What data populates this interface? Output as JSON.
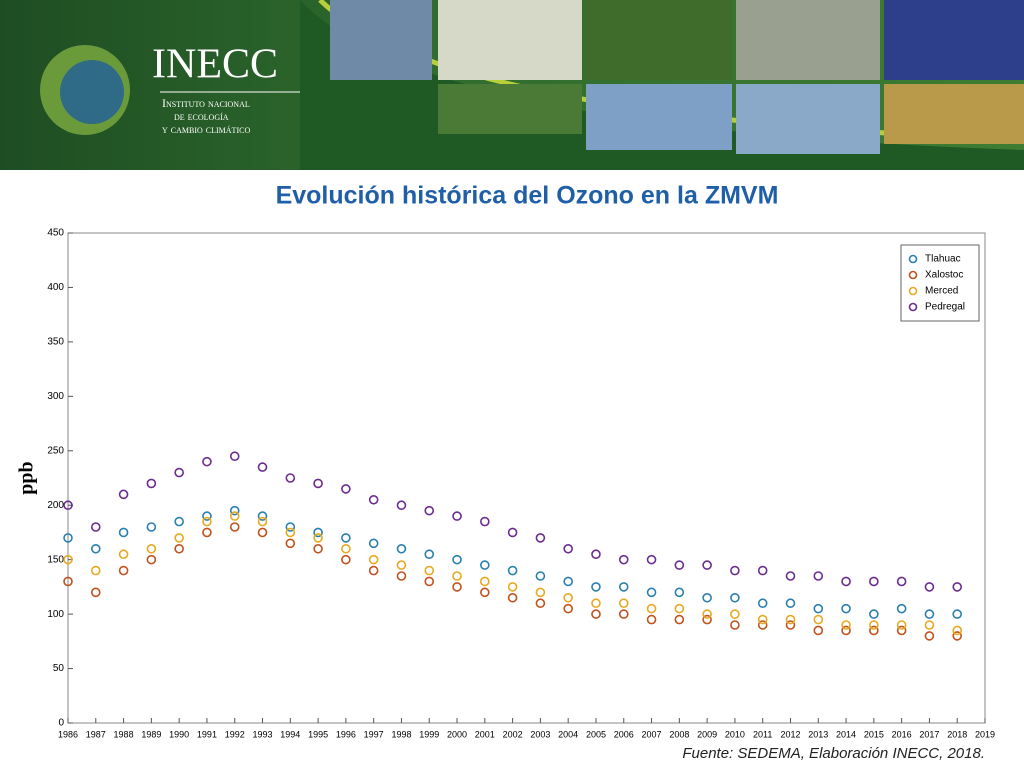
{
  "header": {
    "logo_title": "INECC",
    "logo_subtitle": [
      "Instituto nacional",
      "de ecología",
      "y cambio climático"
    ]
  },
  "chart_data": {
    "type": "scatter",
    "title": "Evolución histórica del Ozono en la ZMVM",
    "y_label": "ppb",
    "x": [
      1986,
      1987,
      1988,
      1989,
      1990,
      1991,
      1992,
      1993,
      1994,
      1995,
      1996,
      1997,
      1998,
      1999,
      2000,
      2001,
      2002,
      2003,
      2004,
      2005,
      2006,
      2007,
      2008,
      2009,
      2010,
      2011,
      2012,
      2013,
      2014,
      2015,
      2016,
      2017,
      2018
    ],
    "series": [
      {
        "name": "Tlahuac",
        "color": "#2a7fb0",
        "values": [
          170,
          160,
          175,
          180,
          185,
          190,
          195,
          190,
          180,
          175,
          170,
          165,
          160,
          155,
          150,
          145,
          140,
          135,
          130,
          125,
          125,
          120,
          120,
          115,
          115,
          110,
          110,
          105,
          105,
          100,
          105,
          100,
          100
        ]
      },
      {
        "name": "Xalostoc",
        "color": "#c0521e",
        "values": [
          130,
          120,
          140,
          150,
          160,
          175,
          180,
          175,
          165,
          160,
          150,
          140,
          135,
          130,
          125,
          120,
          115,
          110,
          105,
          100,
          100,
          95,
          95,
          95,
          90,
          90,
          90,
          85,
          85,
          85,
          85,
          80,
          80
        ]
      },
      {
        "name": "Merced",
        "color": "#e8a820",
        "values": [
          150,
          140,
          155,
          160,
          170,
          185,
          190,
          185,
          175,
          170,
          160,
          150,
          145,
          140,
          135,
          130,
          125,
          120,
          115,
          110,
          110,
          105,
          105,
          100,
          100,
          95,
          95,
          95,
          90,
          90,
          90,
          90,
          85
        ]
      },
      {
        "name": "Pedregal",
        "color": "#6b2c8f",
        "values": [
          200,
          180,
          210,
          220,
          230,
          240,
          245,
          235,
          225,
          220,
          215,
          205,
          200,
          195,
          190,
          185,
          175,
          170,
          160,
          155,
          150,
          150,
          145,
          145,
          140,
          140,
          135,
          135,
          130,
          130,
          130,
          125,
          125
        ]
      }
    ],
    "xlim": [
      1986,
      2019
    ],
    "xticks": [
      1986,
      1987,
      1988,
      1989,
      1990,
      1991,
      1992,
      1993,
      1994,
      1995,
      1996,
      1997,
      1998,
      1999,
      2000,
      2001,
      2002,
      2003,
      2004,
      2005,
      2006,
      2007,
      2008,
      2009,
      2010,
      2011,
      2012,
      2013,
      2014,
      2015,
      2016,
      2017,
      2018,
      2019
    ],
    "ylim": [
      0,
      450
    ],
    "yticks": [
      0,
      50,
      100,
      150,
      200,
      250,
      300,
      350,
      400,
      450
    ],
    "legend": "upper right",
    "source": "Fuente: SEDEMA, Elaboración INECC, 2018."
  }
}
